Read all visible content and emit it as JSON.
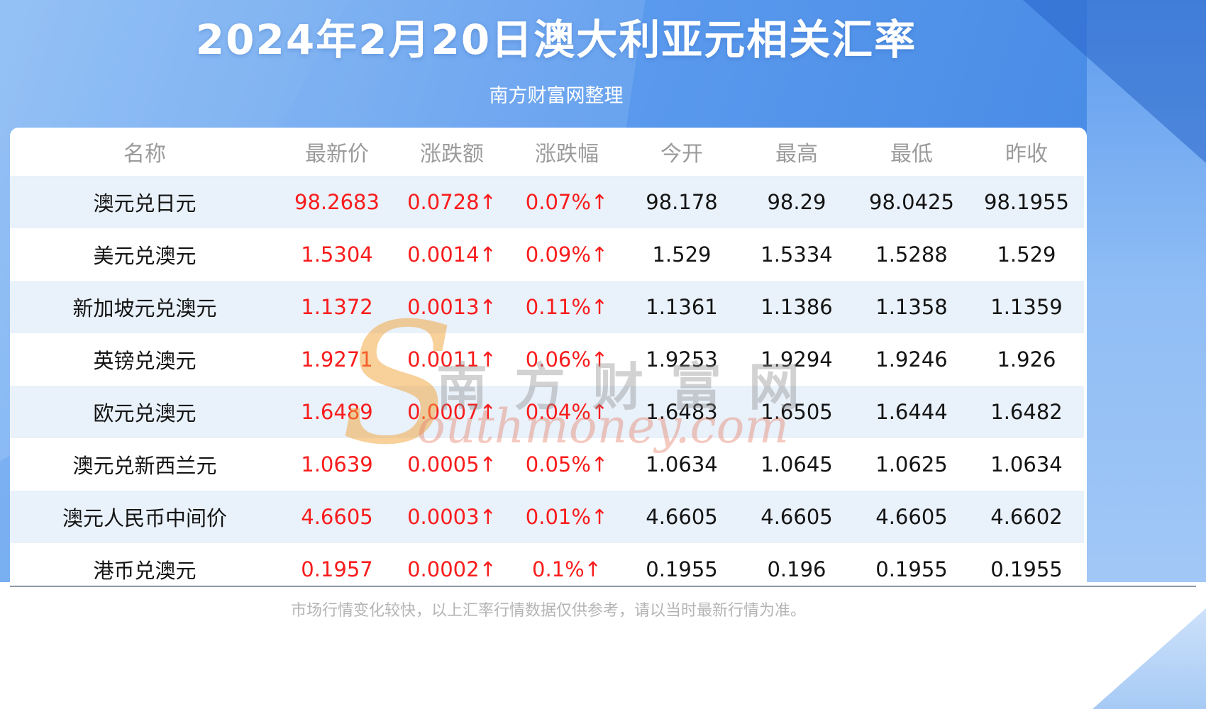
{
  "page": {
    "title": "2024年2月20日澳大利亚元相关汇率",
    "subtitle": "南方财富网整理",
    "footer_note": "市场行情变化较快，以上汇率行情数据仅供参考，请以当时最新行情为准。"
  },
  "watermark": {
    "initial": "S",
    "cn": "南方财富网",
    "en": "outhmoney.com"
  },
  "colors": {
    "up_red": "#f81c1c",
    "header_gray": "#9b9b9b",
    "row_alt_blue": "#e9f1fa",
    "background_blue": "#4a8fe8",
    "card_white": "#ffffff"
  },
  "table": {
    "headers": [
      "名称",
      "最新价",
      "涨跌额",
      "涨跌幅",
      "今开",
      "最高",
      "最低",
      "昨收"
    ],
    "col_keys": [
      "name",
      "latest",
      "change",
      "pct",
      "open",
      "high",
      "low",
      "prev"
    ],
    "rows": [
      {
        "name": "澳元兑日元",
        "latest": "98.2683",
        "change": "0.0728↑",
        "pct": "0.07%↑",
        "open": "98.178",
        "high": "98.29",
        "low": "98.0425",
        "prev": "98.1955"
      },
      {
        "name": "美元兑澳元",
        "latest": "1.5304",
        "change": "0.0014↑",
        "pct": "0.09%↑",
        "open": "1.529",
        "high": "1.5334",
        "low": "1.5288",
        "prev": "1.529"
      },
      {
        "name": "新加坡元兑澳元",
        "latest": "1.1372",
        "change": "0.0013↑",
        "pct": "0.11%↑",
        "open": "1.1361",
        "high": "1.1386",
        "low": "1.1358",
        "prev": "1.1359"
      },
      {
        "name": "英镑兑澳元",
        "latest": "1.9271",
        "change": "0.0011↑",
        "pct": "0.06%↑",
        "open": "1.9253",
        "high": "1.9294",
        "low": "1.9246",
        "prev": "1.926"
      },
      {
        "name": "欧元兑澳元",
        "latest": "1.6489",
        "change": "0.0007↑",
        "pct": "0.04%↑",
        "open": "1.6483",
        "high": "1.6505",
        "low": "1.6444",
        "prev": "1.6482"
      },
      {
        "name": "澳元兑新西兰元",
        "latest": "1.0639",
        "change": "0.0005↑",
        "pct": "0.05%↑",
        "open": "1.0634",
        "high": "1.0645",
        "low": "1.0625",
        "prev": "1.0634"
      },
      {
        "name": "澳元人民币中间价",
        "latest": "4.6605",
        "change": "0.0003↑",
        "pct": "0.01%↑",
        "open": "4.6605",
        "high": "4.6605",
        "low": "4.6605",
        "prev": "4.6602"
      },
      {
        "name": "港币兑澳元",
        "latest": "0.1957",
        "change": "0.0002↑",
        "pct": "0.1%↑",
        "open": "0.1955",
        "high": "0.196",
        "low": "0.1955",
        "prev": "0.1955"
      }
    ]
  },
  "chart_data": {
    "type": "table",
    "title": "2024年2月20日澳大利亚元相关汇率",
    "subtitle": "南方财富网整理",
    "columns": [
      "名称",
      "最新价",
      "涨跌额",
      "涨跌幅",
      "今开",
      "最高",
      "最低",
      "昨收"
    ],
    "rows": [
      [
        "澳元兑日元",
        "98.2683",
        "0.0728↑",
        "0.07%↑",
        "98.178",
        "98.29",
        "98.0425",
        "98.1955"
      ],
      [
        "美元兑澳元",
        "1.5304",
        "0.0014↑",
        "0.09%↑",
        "1.529",
        "1.5334",
        "1.5288",
        "1.529"
      ],
      [
        "新加坡元兑澳元",
        "1.1372",
        "0.0013↑",
        "0.11%↑",
        "1.1361",
        "1.1386",
        "1.1358",
        "1.1359"
      ],
      [
        "英镑兑澳元",
        "1.9271",
        "0.0011↑",
        "0.06%↑",
        "1.9253",
        "1.9294",
        "1.9246",
        "1.926"
      ],
      [
        "欧元兑澳元",
        "1.6489",
        "0.0007↑",
        "0.04%↑",
        "1.6483",
        "1.6505",
        "1.6444",
        "1.6482"
      ],
      [
        "澳元兑新西兰元",
        "1.0639",
        "0.0005↑",
        "0.05%↑",
        "1.0634",
        "1.0645",
        "1.0625",
        "1.0634"
      ],
      [
        "澳元人民币中间价",
        "4.6605",
        "0.0003↑",
        "0.01%↑",
        "4.6605",
        "4.6605",
        "4.6605",
        "4.6602"
      ],
      [
        "港币兑澳元",
        "0.1957",
        "0.0002↑",
        "0.1%↑",
        "0.1955",
        "0.196",
        "0.1955",
        "0.1955"
      ]
    ],
    "notes": "市场行情变化较快，以上汇率行情数据仅供参考，请以当时最新行情为准。"
  }
}
